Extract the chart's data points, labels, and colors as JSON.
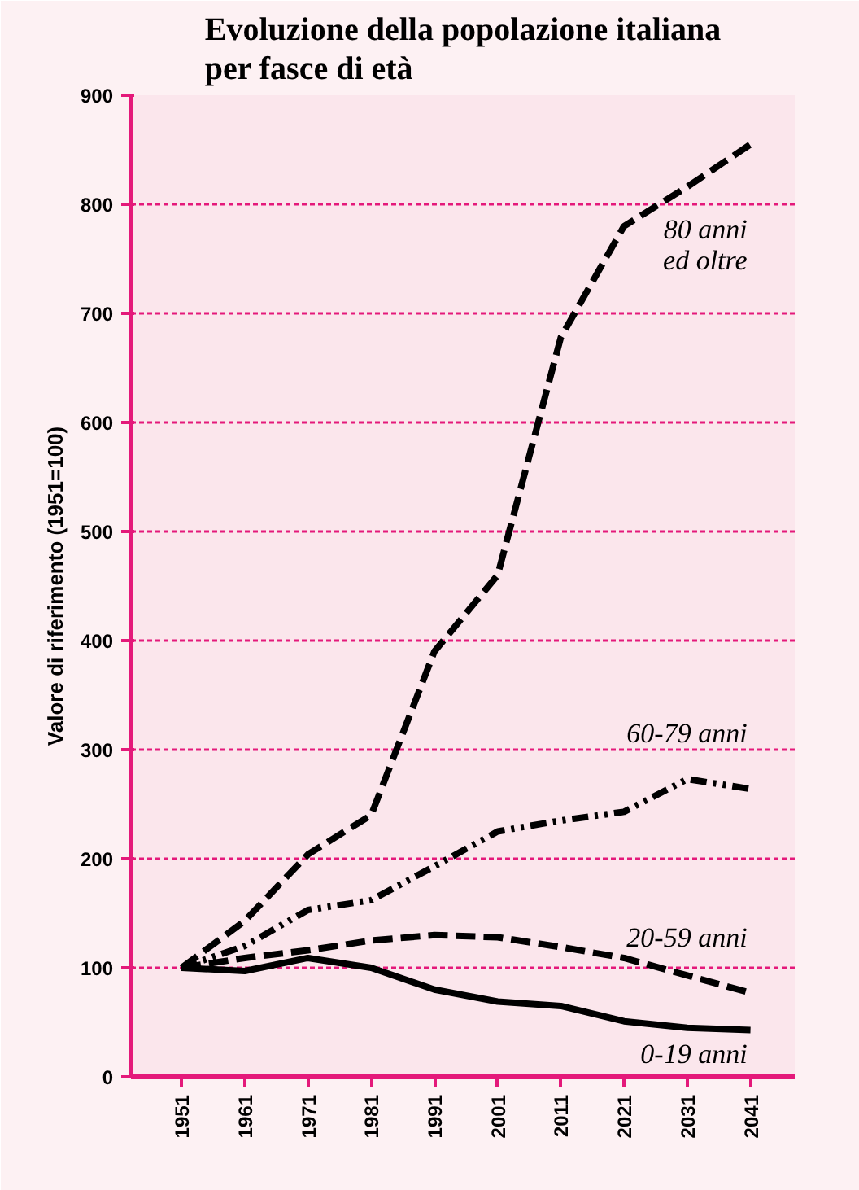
{
  "chart_data": {
    "type": "line",
    "title": "Evoluzione della popolazione italiana\nper fasce di età",
    "ylabel": "Valore di riferimento (1951=100)",
    "categories": [
      "1951",
      "1961",
      "1971",
      "1981",
      "1991",
      "2001",
      "2011",
      "2021",
      "2031",
      "2041"
    ],
    "ylim": [
      0,
      900
    ],
    "yticks": [
      0,
      100,
      200,
      300,
      400,
      500,
      600,
      700,
      800,
      900
    ],
    "grid": "y",
    "marker": "none",
    "series": [
      {
        "name": "80 anni\ned oltre",
        "color": "#000000",
        "line_style": "dashed",
        "values": [
          100,
          143,
          204,
          240,
          390,
          460,
          678,
          780,
          816,
          855
        ]
      },
      {
        "name": "60-79 anni",
        "color": "#000000",
        "line_style": "dashdot",
        "values": [
          100,
          120,
          153,
          162,
          193,
          225,
          235,
          243,
          273,
          264
        ]
      },
      {
        "name": "20-59 anni",
        "color": "#000000",
        "line_style": "dashed",
        "values": [
          100,
          109,
          116,
          125,
          130,
          128,
          119,
          109,
          93,
          77
        ]
      },
      {
        "name": "0-19 anni",
        "color": "#000000",
        "line_style": "solid",
        "values": [
          100,
          97,
          109,
          100,
          80,
          69,
          65,
          51,
          45,
          43
        ]
      }
    ]
  }
}
